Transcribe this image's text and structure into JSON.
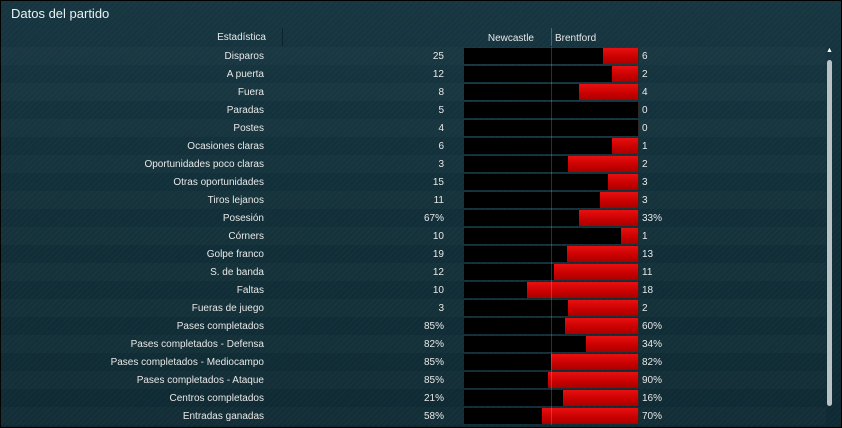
{
  "title": "Datos del partido",
  "header": {
    "stat_label": "Estadística",
    "home_team": "Newcastle",
    "away_team": "Brentford"
  },
  "rows": [
    {
      "label": "Disparos",
      "home": "25",
      "away": "6",
      "away_fill": 0.2
    },
    {
      "label": "A puerta",
      "home": "12",
      "away": "2",
      "away_fill": 0.15
    },
    {
      "label": "Fuera",
      "home": "8",
      "away": "4",
      "away_fill": 0.34
    },
    {
      "label": "Paradas",
      "home": "5",
      "away": "0",
      "away_fill": 0.0
    },
    {
      "label": "Postes",
      "home": "4",
      "away": "0",
      "away_fill": 0.0
    },
    {
      "label": "Ocasiones claras",
      "home": "6",
      "away": "1",
      "away_fill": 0.15
    },
    {
      "label": "Oportunidades poco claras",
      "home": "3",
      "away": "2",
      "away_fill": 0.4
    },
    {
      "label": "Otras oportunidades",
      "home": "15",
      "away": "3",
      "away_fill": 0.17
    },
    {
      "label": "Tiros lejanos",
      "home": "11",
      "away": "3",
      "away_fill": 0.22
    },
    {
      "label": "Posesión",
      "home": "67%",
      "away": "33%",
      "away_fill": 0.34
    },
    {
      "label": "Córners",
      "home": "10",
      "away": "1",
      "away_fill": 0.1
    },
    {
      "label": "Golpe franco",
      "home": "19",
      "away": "13",
      "away_fill": 0.41
    },
    {
      "label": "S. de banda",
      "home": "12",
      "away": "11",
      "away_fill": 0.48
    },
    {
      "label": "Faltas",
      "home": "10",
      "away": "18",
      "away_fill": 0.64
    },
    {
      "label": "Fueras de juego",
      "home": "3",
      "away": "2",
      "away_fill": 0.4
    },
    {
      "label": "Pases completados",
      "home": "85%",
      "away": "60%",
      "away_fill": 0.42
    },
    {
      "label": "Pases completados - Defensa",
      "home": "82%",
      "away": "34%",
      "away_fill": 0.3
    },
    {
      "label": "Pases completados - Mediocampo",
      "home": "85%",
      "away": "82%",
      "away_fill": 0.5
    },
    {
      "label": "Pases completados - Ataque",
      "home": "85%",
      "away": "90%",
      "away_fill": 0.52
    },
    {
      "label": "Centros completados",
      "home": "21%",
      "away": "16%",
      "away_fill": 0.43
    },
    {
      "label": "Entradas ganadas",
      "home": "58%",
      "away": "70%",
      "away_fill": 0.55
    }
  ],
  "colors": {
    "bar": "#d40000",
    "track": "#000000",
    "background": "#142c34"
  },
  "icons": {
    "scroll_up": "scroll-up-arrow-icon"
  }
}
